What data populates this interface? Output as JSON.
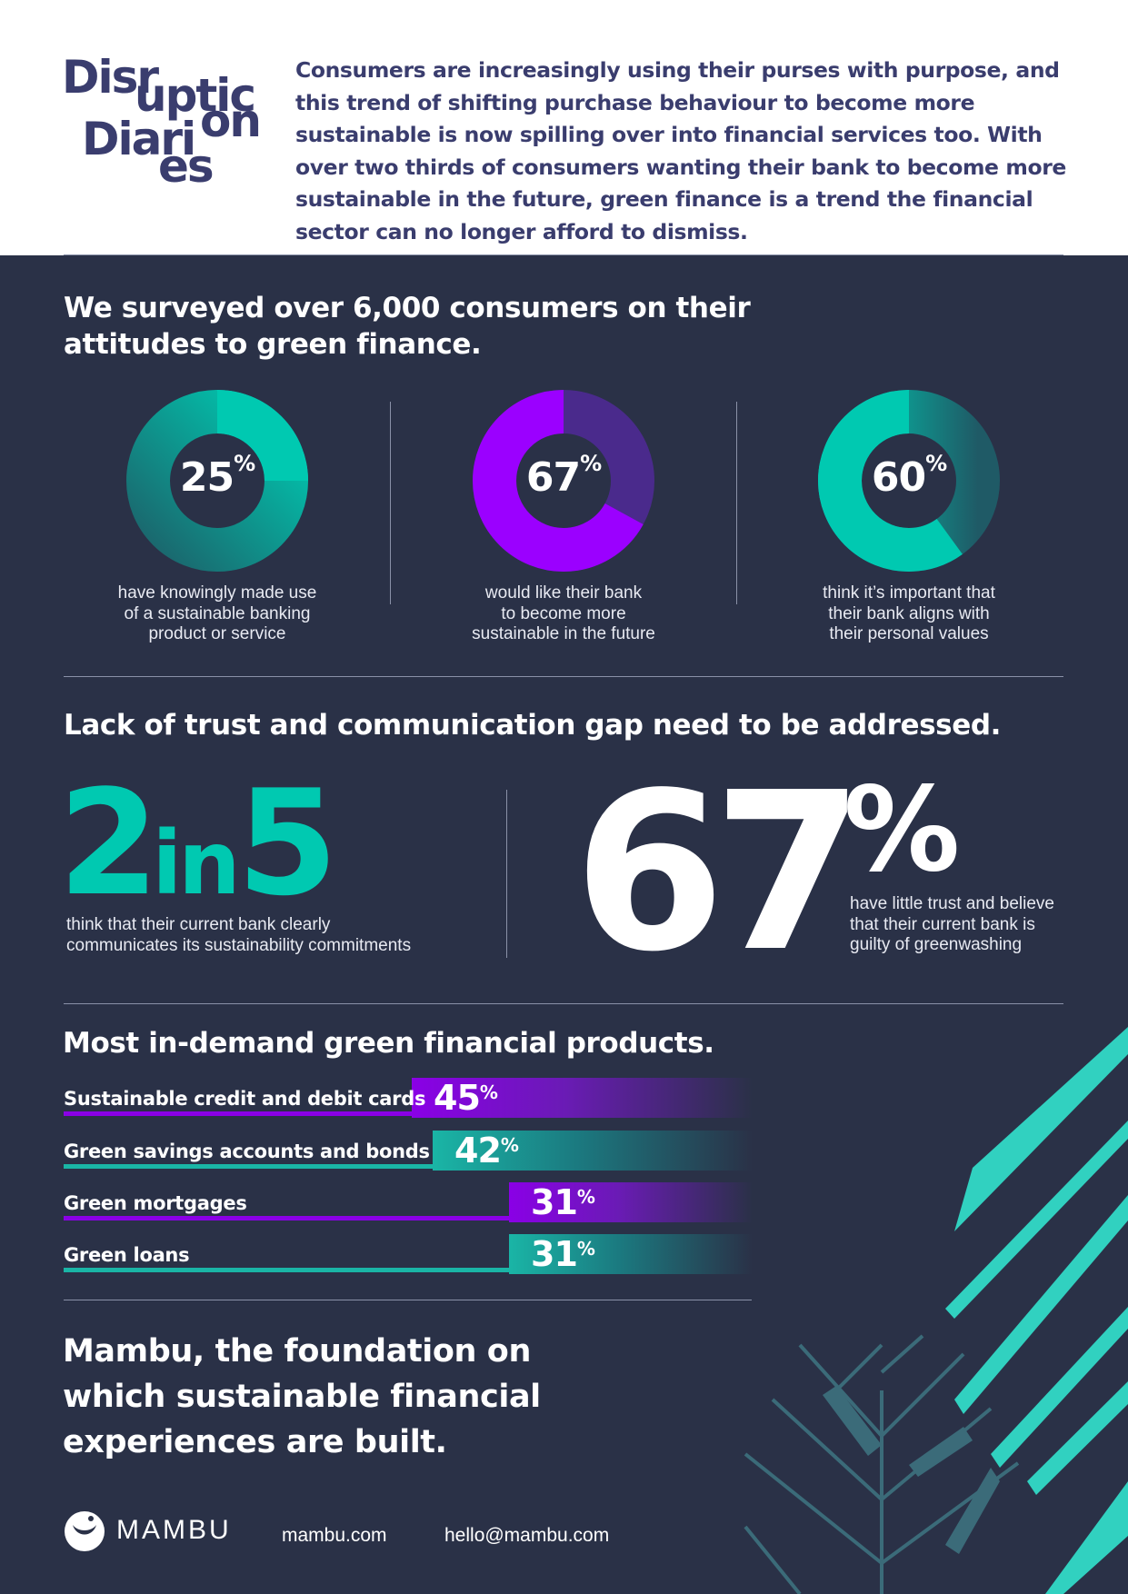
{
  "logo": {
    "line1a": "Disr",
    "line1b": "uptic",
    "line1c": "on",
    "line2a": "Diari",
    "line2b": "es"
  },
  "intro": "Consumers are increasingly using their purses with purpose, and this trend of shifting purchase behaviour to become more sustainable is now spilling over into financial services too. With over two thirds of consumers wanting their bank to become more sustainable in the future, green finance is a trend the financial sector can no longer afford to dismiss.",
  "survey": {
    "heading_line1": "We surveyed over 6,000 consumers on their",
    "heading_line2": "attitudes to green finance.",
    "stats": [
      {
        "value": "25",
        "unit": "%",
        "fraction": 0.25,
        "color": "#00c9b1",
        "caption": [
          "have knowingly made use",
          "of a sustainable banking",
          "product or service"
        ]
      },
      {
        "value": "67",
        "unit": "%",
        "fraction": 0.67,
        "color": "#9b00ff",
        "caption": [
          "would like their bank",
          "to become more",
          "sustainable in the future"
        ]
      },
      {
        "value": "60",
        "unit": "%",
        "fraction": 0.6,
        "color": "#00c9b1",
        "caption": [
          "think it’s important that",
          "their bank aligns with",
          "their personal values"
        ]
      }
    ]
  },
  "trust": {
    "heading": "Lack of trust and communication gap need to be addressed.",
    "left_big_a": "2",
    "left_big_b": "in",
    "left_big_c": "5",
    "left_desc": [
      "think that their current bank clearly",
      "communicates its sustainability commitments"
    ],
    "right_big": "67",
    "right_unit": "%",
    "right_desc": [
      "have little trust and believe",
      "that their current bank is",
      "guilty of greenwashing"
    ]
  },
  "products": {
    "heading": "Most in-demand green financial products.",
    "items": [
      {
        "label": "Sustainable credit and debit cards",
        "value": "45",
        "unit": "%",
        "color": "purple"
      },
      {
        "label": "Green savings accounts and bonds",
        "value": "42",
        "unit": "%",
        "color": "teal"
      },
      {
        "label": "Green mortgages",
        "value": "31",
        "unit": "%",
        "color": "purple"
      },
      {
        "label": "Green loans",
        "value": "31",
        "unit": "%",
        "color": "teal"
      }
    ]
  },
  "closing": {
    "line1": "Mambu, the foundation on",
    "line2": "which sustainable financial",
    "line3": "experiences are built."
  },
  "footer": {
    "brand": "MAMBU",
    "website": "mambu.com",
    "email": "hello@mambu.com"
  },
  "colors": {
    "navy": "#2a3147",
    "teal": "#00c9b1",
    "purple": "#9b00ff",
    "logo": "#3a3d6e"
  }
}
